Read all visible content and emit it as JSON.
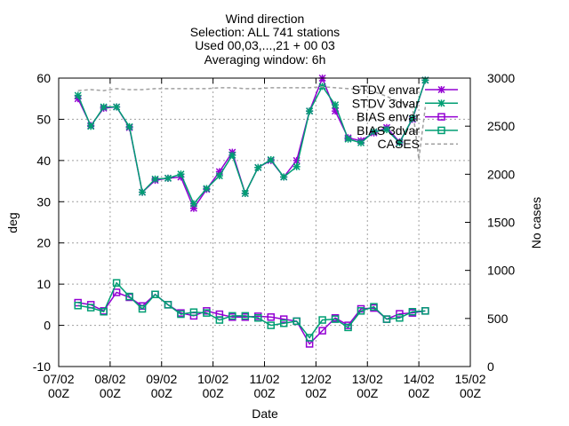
{
  "chart_data": {
    "type": "line",
    "title": [
      "Wind direction",
      "Selection: ALL     741 stations",
      "Used 00,03,...,21 + 00 03",
      "Averaging window:  6h"
    ],
    "xlabel": "Date",
    "ylabel": "deg",
    "y2label": "No cases",
    "xlim": [
      0,
      8
    ],
    "ylim": [
      -10,
      60
    ],
    "y2lim": [
      0,
      3000
    ],
    "grid": true,
    "legend_position": "top-right",
    "x_ticks": [
      {
        "value": 0,
        "label": [
          "07/02",
          "00Z"
        ]
      },
      {
        "value": 1,
        "label": [
          "08/02",
          "00Z"
        ]
      },
      {
        "value": 2,
        "label": [
          "09/02",
          "00Z"
        ]
      },
      {
        "value": 3,
        "label": [
          "10/02",
          "00Z"
        ]
      },
      {
        "value": 4,
        "label": [
          "11/02",
          "00Z"
        ]
      },
      {
        "value": 5,
        "label": [
          "12/02",
          "00Z"
        ]
      },
      {
        "value": 6,
        "label": [
          "13/02",
          "00Z"
        ]
      },
      {
        "value": 7,
        "label": [
          "14/02",
          "00Z"
        ]
      },
      {
        "value": 8,
        "label": [
          "15/02",
          "00Z"
        ]
      }
    ],
    "y_ticks": [
      -10,
      0,
      10,
      20,
      30,
      40,
      50,
      60
    ],
    "y2_ticks": [
      0,
      500,
      1000,
      1500,
      2000,
      2500,
      3000
    ],
    "x": [
      0.375,
      0.625,
      0.875,
      1.125,
      1.375,
      1.625,
      1.875,
      2.125,
      2.375,
      2.625,
      2.875,
      3.125,
      3.375,
      3.625,
      3.875,
      4.125,
      4.375,
      4.625,
      4.875,
      5.125,
      5.375,
      5.625,
      5.875,
      6.125,
      6.375,
      6.625,
      6.875,
      7.125
    ],
    "series": [
      {
        "name": "STDV envar",
        "color": "#9400d3",
        "marker": "star",
        "axis": "y",
        "values": [
          55.0,
          48.5,
          52.7,
          53.0,
          48.0,
          32.3,
          35.2,
          35.7,
          36.0,
          28.4,
          33.0,
          37.3,
          42.0,
          32.0,
          38.3,
          40.0,
          36.0,
          40.0,
          52.0,
          60.0,
          52.0,
          45.5,
          44.8,
          46.7,
          48.0,
          44.5,
          50.0,
          59.5
        ]
      },
      {
        "name": "STDV 3dvar",
        "color": "#009e73",
        "marker": "star",
        "axis": "y",
        "values": [
          55.8,
          48.3,
          53.0,
          53.0,
          48.2,
          32.3,
          35.5,
          35.7,
          36.7,
          29.5,
          33.2,
          36.3,
          41.3,
          32.0,
          38.3,
          40.2,
          36.0,
          38.5,
          52.0,
          58.0,
          53.5,
          45.2,
          44.3,
          47.0,
          47.5,
          44.3,
          50.2,
          59.5
        ]
      },
      {
        "name": "BIAS envar",
        "color": "#9400d3",
        "marker": "square",
        "axis": "y",
        "values": [
          5.5,
          5.0,
          3.5,
          8.0,
          6.8,
          4.7,
          7.5,
          5.0,
          3.0,
          2.3,
          3.5,
          2.7,
          2.0,
          2.0,
          2.2,
          2.0,
          1.5,
          1.0,
          -4.5,
          -1.3,
          1.8,
          0.0,
          4.0,
          4.2,
          1.5,
          2.8,
          3.0,
          3.5
        ]
      },
      {
        "name": "BIAS 3dvar",
        "color": "#009e73",
        "marker": "square",
        "axis": "y",
        "values": [
          4.8,
          4.3,
          3.3,
          10.3,
          7.0,
          4.0,
          7.5,
          5.0,
          2.7,
          3.2,
          3.0,
          1.3,
          2.3,
          2.3,
          1.8,
          0.0,
          0.5,
          1.0,
          -3.0,
          1.3,
          1.5,
          -0.5,
          3.5,
          4.5,
          1.5,
          1.8,
          3.3,
          3.5
        ]
      },
      {
        "name": "CASES",
        "color": "#a0a0a0",
        "dash": true,
        "axis": "y2",
        "x": [
          0.375,
          0.625,
          0.875,
          1.125,
          1.375,
          1.625,
          1.875,
          2.125,
          2.375,
          2.625,
          2.875,
          3.125,
          3.375,
          3.625,
          3.875,
          4.125,
          4.375,
          4.625,
          4.875,
          5.125,
          5.375,
          5.625,
          5.875,
          6.125,
          6.375,
          6.625,
          6.875,
          7.0,
          7.125
        ],
        "values": [
          2870,
          2880,
          2870,
          2890,
          2880,
          2880,
          2890,
          2890,
          2890,
          2890,
          2890,
          2900,
          2900,
          2890,
          2890,
          2900,
          2900,
          2900,
          2900,
          2910,
          2900,
          2890,
          2880,
          2860,
          2810,
          2750,
          2700,
          2150,
          2700
        ]
      }
    ]
  }
}
